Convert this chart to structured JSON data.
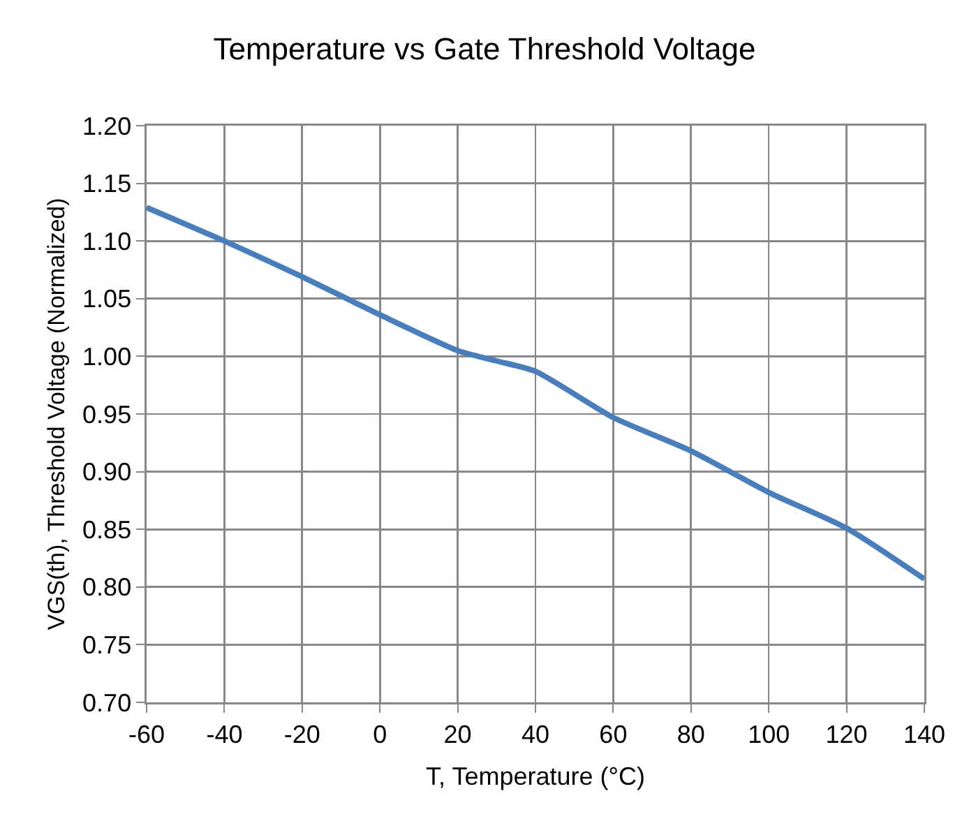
{
  "chart_data": {
    "type": "line",
    "title": "Temperature vs Gate Threshold Voltage",
    "xlabel": "T, Temperature (°C)",
    "ylabel": "VGS(th), Threshold Voltage (Normalized)",
    "x": [
      -60,
      -40,
      -20,
      0,
      20,
      30,
      40,
      60,
      80,
      100,
      120,
      140
    ],
    "series": [
      {
        "color": "#4a7ebb",
        "values": [
          1.129,
          1.1,
          1.069,
          1.036,
          1.005,
          0.996,
          0.987,
          0.947,
          0.918,
          0.882,
          0.851,
          0.807
        ]
      }
    ],
    "xlim": [
      -60,
      140
    ],
    "xticks": [
      -60,
      -40,
      -20,
      0,
      20,
      40,
      60,
      80,
      100,
      120,
      140
    ],
    "ylim": [
      0.7,
      1.2
    ],
    "yticks": [
      {
        "value": 0.7,
        "label": "0.70"
      },
      {
        "value": 0.75,
        "label": "0.75"
      },
      {
        "value": 0.8,
        "label": "0.80"
      },
      {
        "value": 0.85,
        "label": "0.85"
      },
      {
        "value": 0.9,
        "label": "0.90"
      },
      {
        "value": 0.95,
        "label": "0.95"
      },
      {
        "value": 1.0,
        "label": "1.00"
      },
      {
        "value": 1.05,
        "label": "1.05"
      },
      {
        "value": 1.1,
        "label": "1.10"
      },
      {
        "value": 1.15,
        "label": "1.15"
      },
      {
        "value": 1.2,
        "label": "1.20"
      }
    ],
    "grid": true,
    "marker": "none",
    "line_style": "solid"
  }
}
